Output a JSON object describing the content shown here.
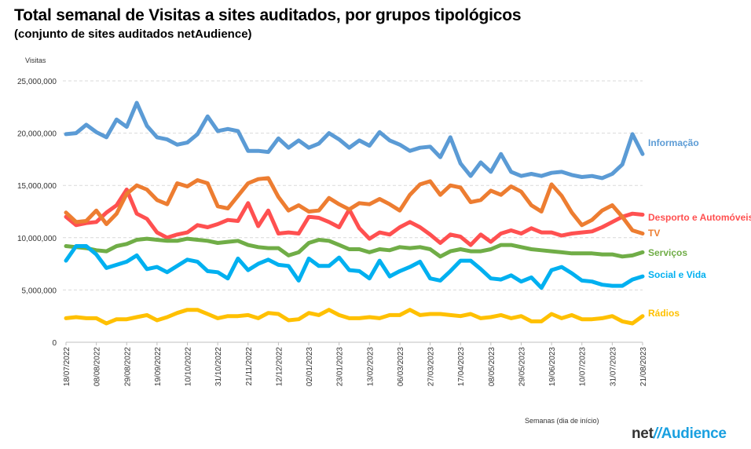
{
  "header": {
    "title": "Total semanal de Visitas a sites auditados, por grupos tipológicos",
    "subtitle": "(conjunto de sites auditados netAudience)"
  },
  "logo": {
    "prefix": "net",
    "slash": "//",
    "brand": "Audience"
  },
  "chart_data": {
    "type": "line",
    "ylabel": "Visitas",
    "xlabel": "Semanas  (dia de início)",
    "ylim": [
      0,
      25000000
    ],
    "yticks": [
      0,
      5000000,
      10000000,
      15000000,
      20000000,
      25000000
    ],
    "ytick_labels": [
      "0",
      "5,000,000",
      "10,000,000",
      "15,000,000",
      "20,000,000",
      "25,000,000"
    ],
    "grid": "horizontal-dashed",
    "legend": "right-end-labels",
    "n_weeks": 58,
    "x_tick_labels": [
      {
        "index": 0,
        "label": "18/07/2022"
      },
      {
        "index": 3,
        "label": "08/08/2022"
      },
      {
        "index": 6,
        "label": "29/08/2022"
      },
      {
        "index": 9,
        "label": "19/09/2022"
      },
      {
        "index": 12,
        "label": "10/10/2022"
      },
      {
        "index": 15,
        "label": "31/10/2022"
      },
      {
        "index": 18,
        "label": "21/11/2022"
      },
      {
        "index": 21,
        "label": "12/12/2022"
      },
      {
        "index": 24,
        "label": "02/01/2023"
      },
      {
        "index": 27,
        "label": "23/01/2023"
      },
      {
        "index": 30,
        "label": "13/02/2023"
      },
      {
        "index": 33,
        "label": "06/03/2023"
      },
      {
        "index": 36,
        "label": "27/03/2023"
      },
      {
        "index": 39,
        "label": "17/04/2023"
      },
      {
        "index": 42,
        "label": "08/05/2023"
      },
      {
        "index": 45,
        "label": "29/05/2023"
      },
      {
        "index": 48,
        "label": "19/06/2023"
      },
      {
        "index": 51,
        "label": "10/07/2023"
      },
      {
        "index": 54,
        "label": "31/07/2023"
      },
      {
        "index": 57,
        "label": "21/08/2023"
      }
    ],
    "series": [
      {
        "name": "Informação",
        "color": "#5b9bd5",
        "values": [
          19900000,
          20000000,
          20800000,
          20100000,
          19600000,
          21300000,
          20600000,
          22900000,
          20700000,
          19600000,
          19400000,
          18900000,
          19100000,
          19900000,
          21600000,
          20200000,
          20400000,
          20200000,
          18300000,
          18300000,
          18200000,
          19500000,
          18600000,
          19300000,
          18600000,
          19000000,
          20000000,
          19400000,
          18600000,
          19300000,
          18800000,
          20100000,
          19300000,
          18900000,
          18300000,
          18600000,
          18700000,
          17700000,
          19600000,
          17100000,
          15900000,
          17200000,
          16300000,
          18000000,
          16300000,
          15900000,
          16100000,
          15900000,
          16200000,
          16300000,
          16000000,
          15800000,
          15900000,
          15700000,
          16100000,
          17000000,
          19900000,
          18000000
        ]
      },
      {
        "name": "Desporto e Automóveis",
        "color": "#ff5050",
        "values": [
          12000000,
          11200000,
          11400000,
          11500000,
          12400000,
          13100000,
          14600000,
          12300000,
          11800000,
          10500000,
          10000000,
          10300000,
          10500000,
          11200000,
          11000000,
          11300000,
          11700000,
          11600000,
          13300000,
          11100000,
          12600000,
          10400000,
          10500000,
          10400000,
          12000000,
          11900000,
          11500000,
          11000000,
          12700000,
          10900000,
          9900000,
          10500000,
          10300000,
          11000000,
          11500000,
          11000000,
          10300000,
          9500000,
          10300000,
          10100000,
          9300000,
          10300000,
          9600000,
          10400000,
          10700000,
          10400000,
          10900000,
          10500000,
          10500000,
          10200000,
          10400000,
          10500000,
          10600000,
          11000000,
          11500000,
          12000000,
          12300000,
          12200000
        ]
      },
      {
        "name": "TV",
        "color": "#ed7d31",
        "values": [
          12400000,
          11500000,
          11600000,
          12600000,
          11300000,
          12300000,
          14200000,
          15000000,
          14600000,
          13600000,
          13200000,
          15200000,
          14900000,
          15500000,
          15200000,
          13000000,
          12800000,
          14000000,
          15200000,
          15600000,
          15700000,
          13900000,
          12600000,
          13100000,
          12500000,
          12600000,
          13800000,
          13200000,
          12700000,
          13300000,
          13200000,
          13700000,
          13200000,
          12600000,
          14100000,
          15100000,
          15400000,
          14100000,
          15000000,
          14800000,
          13400000,
          13600000,
          14500000,
          14100000,
          14900000,
          14400000,
          13100000,
          12500000,
          15100000,
          14000000,
          12400000,
          11200000,
          11700000,
          12600000,
          13100000,
          12000000,
          10700000,
          10400000
        ]
      },
      {
        "name": "Serviços",
        "color": "#70ad47",
        "values": [
          9200000,
          9100000,
          9000000,
          8800000,
          8700000,
          9200000,
          9400000,
          9800000,
          9900000,
          9800000,
          9700000,
          9700000,
          9900000,
          9800000,
          9700000,
          9500000,
          9600000,
          9700000,
          9300000,
          9100000,
          9000000,
          9000000,
          8300000,
          8600000,
          9500000,
          9800000,
          9700000,
          9300000,
          8900000,
          8900000,
          8600000,
          8900000,
          8800000,
          9100000,
          9000000,
          9100000,
          8900000,
          8200000,
          8700000,
          8900000,
          8700000,
          8700000,
          8900000,
          9300000,
          9300000,
          9100000,
          8900000,
          8800000,
          8700000,
          8600000,
          8500000,
          8500000,
          8500000,
          8400000,
          8400000,
          8200000,
          8300000,
          8600000
        ]
      },
      {
        "name": "Social e Vida",
        "color": "#00b0f0",
        "values": [
          7800000,
          9200000,
          9200000,
          8400000,
          7100000,
          7400000,
          7700000,
          8300000,
          7000000,
          7200000,
          6700000,
          7300000,
          7900000,
          7700000,
          6800000,
          6700000,
          6100000,
          8000000,
          6900000,
          7500000,
          7900000,
          7400000,
          7300000,
          5900000,
          8000000,
          7300000,
          7300000,
          8100000,
          6900000,
          6800000,
          6100000,
          7800000,
          6300000,
          6800000,
          7200000,
          7700000,
          6100000,
          5900000,
          6800000,
          7800000,
          7800000,
          7000000,
          6100000,
          6000000,
          6400000,
          5800000,
          6200000,
          5200000,
          6900000,
          7200000,
          6600000,
          5900000,
          5800000,
          5500000,
          5400000,
          5400000,
          6000000,
          6300000
        ]
      },
      {
        "name": "Rádios",
        "color": "#ffc000",
        "values": [
          2300000,
          2400000,
          2300000,
          2300000,
          1800000,
          2200000,
          2200000,
          2400000,
          2600000,
          2100000,
          2400000,
          2800000,
          3100000,
          3100000,
          2700000,
          2300000,
          2500000,
          2500000,
          2600000,
          2300000,
          2800000,
          2700000,
          2100000,
          2200000,
          2800000,
          2600000,
          3100000,
          2600000,
          2300000,
          2300000,
          2400000,
          2300000,
          2600000,
          2600000,
          3100000,
          2600000,
          2700000,
          2700000,
          2600000,
          2500000,
          2700000,
          2300000,
          2400000,
          2600000,
          2300000,
          2500000,
          2000000,
          2000000,
          2700000,
          2300000,
          2600000,
          2200000,
          2200000,
          2300000,
          2500000,
          2000000,
          1800000,
          2500000
        ]
      }
    ]
  }
}
